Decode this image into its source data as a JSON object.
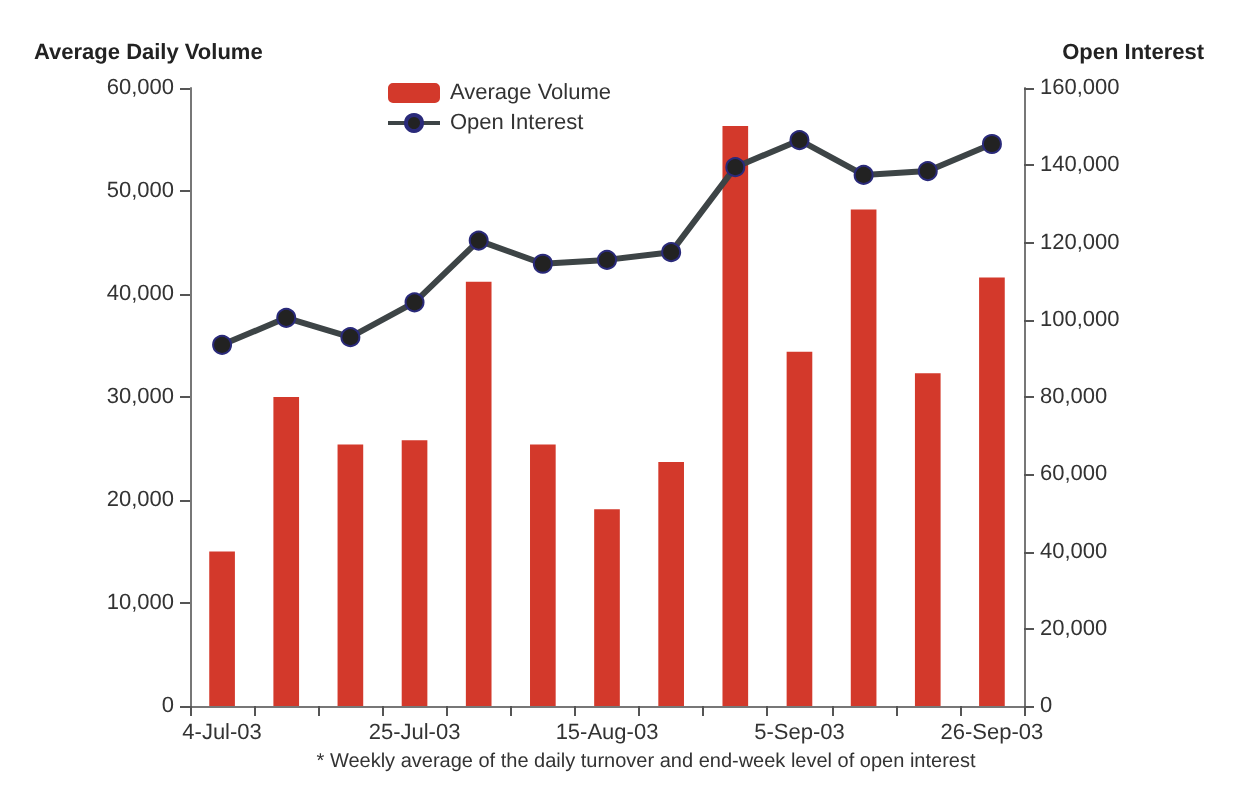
{
  "chart_data": {
    "type": "bar",
    "ylabel": "Average Daily Volume",
    "y2label": "Open Interest",
    "categories": [
      "4-Jul-03",
      null,
      null,
      "25-Jul-03",
      null,
      null,
      "15-Aug-03",
      null,
      null,
      "5-Sep-03",
      null,
      null,
      "26-Sep-03"
    ],
    "series": [
      {
        "name": "Average Volume",
        "color": "#d3392b",
        "values": [
          15000,
          30000,
          25400,
          25800,
          41200,
          25400,
          19100,
          23700,
          56300,
          34400,
          48200,
          32300,
          41600
        ]
      },
      {
        "name": "Open Interest",
        "type": "line",
        "axis": "y2",
        "color": "#3d4446",
        "marker": "circle",
        "line_style": "solid",
        "values": [
          93500,
          100500,
          95500,
          104500,
          120500,
          114500,
          115500,
          117500,
          139500,
          146500,
          137500,
          138500,
          145500
        ]
      }
    ],
    "ylim": [
      0,
      60000
    ],
    "yticks": [
      0,
      {
        "value": 10000,
        "label": "10,000"
      },
      {
        "value": 20000,
        "label": "20,000"
      },
      {
        "value": 30000,
        "label": "30,000"
      },
      {
        "value": 40000,
        "label": "40,000"
      },
      {
        "value": 50000,
        "label": "50,000"
      },
      {
        "value": 60000,
        "label": "60,000"
      }
    ],
    "y2lim": [
      0,
      160000
    ],
    "y2ticks": [
      0,
      {
        "value": 20000,
        "label": "20,000"
      },
      {
        "value": 40000,
        "label": "40,000"
      },
      {
        "value": 60000,
        "label": "60,000"
      },
      {
        "value": 80000,
        "label": "80,000"
      },
      {
        "value": 100000,
        "label": "100,000"
      },
      {
        "value": 120000,
        "label": "120,000"
      },
      {
        "value": 140000,
        "label": "140,000"
      },
      {
        "value": 160000,
        "label": "160,000"
      }
    ],
    "grid": false,
    "legend": "top",
    "annotations": [
      "* Weekly average of the daily turnover and end-week level of open interest"
    ]
  }
}
